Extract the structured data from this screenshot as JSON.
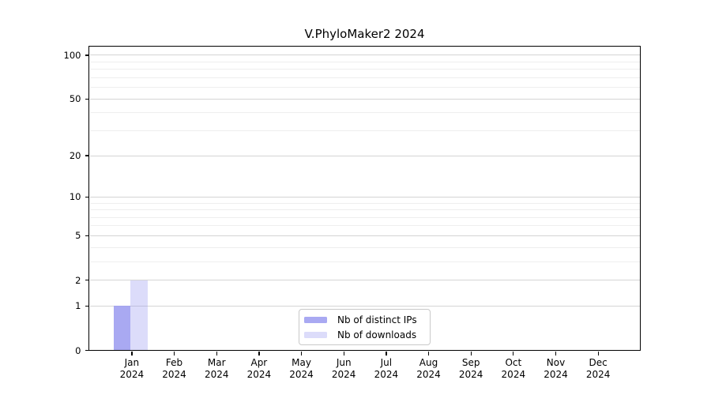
{
  "figure": {
    "background": "#ffffff",
    "text_color": "#000000",
    "spine_color": "#000000"
  },
  "chart_data": {
    "type": "bar",
    "title": "V.PhyloMaker2 2024",
    "x": {
      "months": [
        "Jan",
        "Feb",
        "Mar",
        "Apr",
        "May",
        "Jun",
        "Jul",
        "Aug",
        "Sep",
        "Oct",
        "Nov",
        "Dec"
      ],
      "year": "2024"
    },
    "y_axis": {
      "scale": "log1p",
      "major_ticks": [
        0,
        1,
        2,
        5,
        10,
        20,
        50,
        100
      ],
      "major_tick_labels": [
        "0",
        "1",
        "2",
        "5",
        "10",
        "20",
        "50",
        "100"
      ],
      "minor_ticks": [
        3,
        4,
        6,
        7,
        8,
        9,
        30,
        40,
        60,
        70,
        80,
        90
      ],
      "range": [
        0,
        114
      ]
    },
    "series": [
      {
        "name": "Nb of distinct IPs",
        "color": "#9a9af0",
        "alpha": 0.85,
        "values": [
          1,
          0,
          0,
          0,
          0,
          0,
          0,
          0,
          0,
          0,
          0,
          0
        ]
      },
      {
        "name": "Nb of downloads",
        "color": "#9a9af0",
        "alpha": 0.35,
        "values": [
          2,
          0,
          0,
          0,
          0,
          0,
          0,
          0,
          0,
          0,
          0,
          0
        ]
      }
    ],
    "legend": {
      "position": "bottom-center"
    },
    "grid": {
      "major_color": "#d4d4d4",
      "minor_color": "#eeeeee"
    }
  }
}
